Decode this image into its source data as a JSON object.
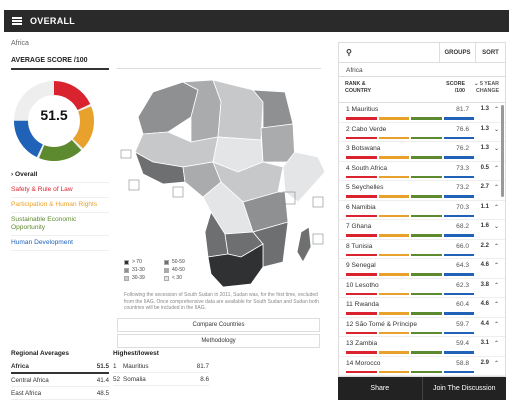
{
  "header": {
    "title": "OVERALL"
  },
  "region": "Africa",
  "average": {
    "label": "AVERAGE SCORE /100",
    "value": "51.5",
    "segments": [
      {
        "color": "#d9232e",
        "fraction": 0.19
      },
      {
        "color": "#e8a22b",
        "fraction": 0.19
      },
      {
        "color": "#5d8a2f",
        "fraction": 0.19
      },
      {
        "color": "#1f62b8",
        "fraction": 0.19
      }
    ]
  },
  "categories": [
    {
      "label": "Overall",
      "color": "#222222"
    },
    {
      "label": "Safety & Rule of Law",
      "color": "#d9232e"
    },
    {
      "label": "Participation & Human Rights",
      "color": "#e8a22b"
    },
    {
      "label": "Sustainable Economic Opportunity",
      "color": "#5d8a2f"
    },
    {
      "label": "Human Development",
      "color": "#1f62b8"
    }
  ],
  "legend": [
    {
      "label": "> 70",
      "color": "#2f3133"
    },
    {
      "label": "50-59",
      "color": "#6d6f71"
    },
    {
      "label": "31-30",
      "color": "#8e9092"
    },
    {
      "label": "40-50",
      "color": "#a9abad"
    },
    {
      "label": "30-39",
      "color": "#c6c8ca"
    },
    {
      "label": "< 30",
      "color": "#e4e5e6"
    }
  ],
  "note": "Following the secession of South Sudan in 2011, Sudan was, for the first time, excluded from the IIAG. Once comprehensive data are available for South Sudan and Sudan both countries will be included in the IIAG.",
  "buttons": {
    "compare": "Compare Countries",
    "methodology": "Methodology"
  },
  "regional": {
    "title": "Regional Averages",
    "rows": [
      {
        "name": "Africa",
        "value": "51.5"
      },
      {
        "name": "Central Africa",
        "value": "41.4"
      },
      {
        "name": "East Africa",
        "value": "48.5"
      }
    ]
  },
  "highlow": {
    "title": "Highest/lowest",
    "rows": [
      {
        "rank": "1",
        "name": "Mauritius",
        "value": "81.7"
      },
      {
        "rank": "52",
        "name": "Somalia",
        "value": "8.6"
      }
    ]
  },
  "panel": {
    "groups": "GROUPS",
    "sort": "SORT",
    "region": "Africa",
    "col_rank": "RANK &",
    "col_country": "COUNTRY",
    "col_score": "SCORE",
    "col_score2": "/100",
    "col_change": "5 YEAR",
    "col_change2": "CHANGE",
    "rows": [
      {
        "rank": "1",
        "name": "Mauritius",
        "score": "81.7",
        "change": "1.3",
        "dir": "⌃",
        "dcolor": "#333"
      },
      {
        "rank": "2",
        "name": "Cabo Verde",
        "score": "76.6",
        "change": "1.3",
        "dir": "⌄",
        "dcolor": "#333"
      },
      {
        "rank": "3",
        "name": "Botswana",
        "score": "76.2",
        "change": "1.3",
        "dir": "⌄",
        "dcolor": "#333"
      },
      {
        "rank": "4",
        "name": "South Africa",
        "score": "73.3",
        "change": "0.5",
        "dir": "⌃",
        "dcolor": "#333"
      },
      {
        "rank": "5",
        "name": "Seychelles",
        "score": "73.2",
        "change": "2.7",
        "dir": "⌃",
        "dcolor": "#333"
      },
      {
        "rank": "6",
        "name": "Namibia",
        "score": "70.3",
        "change": "1.1",
        "dir": "⌃",
        "dcolor": "#333"
      },
      {
        "rank": "7",
        "name": "Ghana",
        "score": "68.2",
        "change": "1.6",
        "dir": "⌄",
        "dcolor": "#333"
      },
      {
        "rank": "8",
        "name": "Tunisia",
        "score": "66.0",
        "change": "2.2",
        "dir": "⌃",
        "dcolor": "#333"
      },
      {
        "rank": "9",
        "name": "Senegal",
        "score": "64.3",
        "change": "4.6",
        "dir": "⌃",
        "dcolor": "#333"
      },
      {
        "rank": "10",
        "name": "Lesotho",
        "score": "62.3",
        "change": "3.8",
        "dir": "⌃",
        "dcolor": "#333"
      },
      {
        "rank": "11",
        "name": "Rwanda",
        "score": "60.4",
        "change": "4.6",
        "dir": "⌃",
        "dcolor": "#333"
      },
      {
        "rank": "12",
        "name": "São Tomé & Príncipe",
        "score": "59.7",
        "change": "4.4",
        "dir": "⌃",
        "dcolor": "#333"
      },
      {
        "rank": "13",
        "name": "Zambia",
        "score": "59.4",
        "change": "3.1",
        "dir": "⌃",
        "dcolor": "#333"
      },
      {
        "rank": "14",
        "name": "Morocco",
        "score": "58.8",
        "change": "2.9",
        "dir": "⌃",
        "dcolor": "#333"
      }
    ]
  },
  "bar_colors": [
    "#d9232e",
    "#e8a22b",
    "#5d8a2f",
    "#1f62b8"
  ],
  "footer": {
    "share": "Share",
    "join": "Join The Discussion"
  }
}
